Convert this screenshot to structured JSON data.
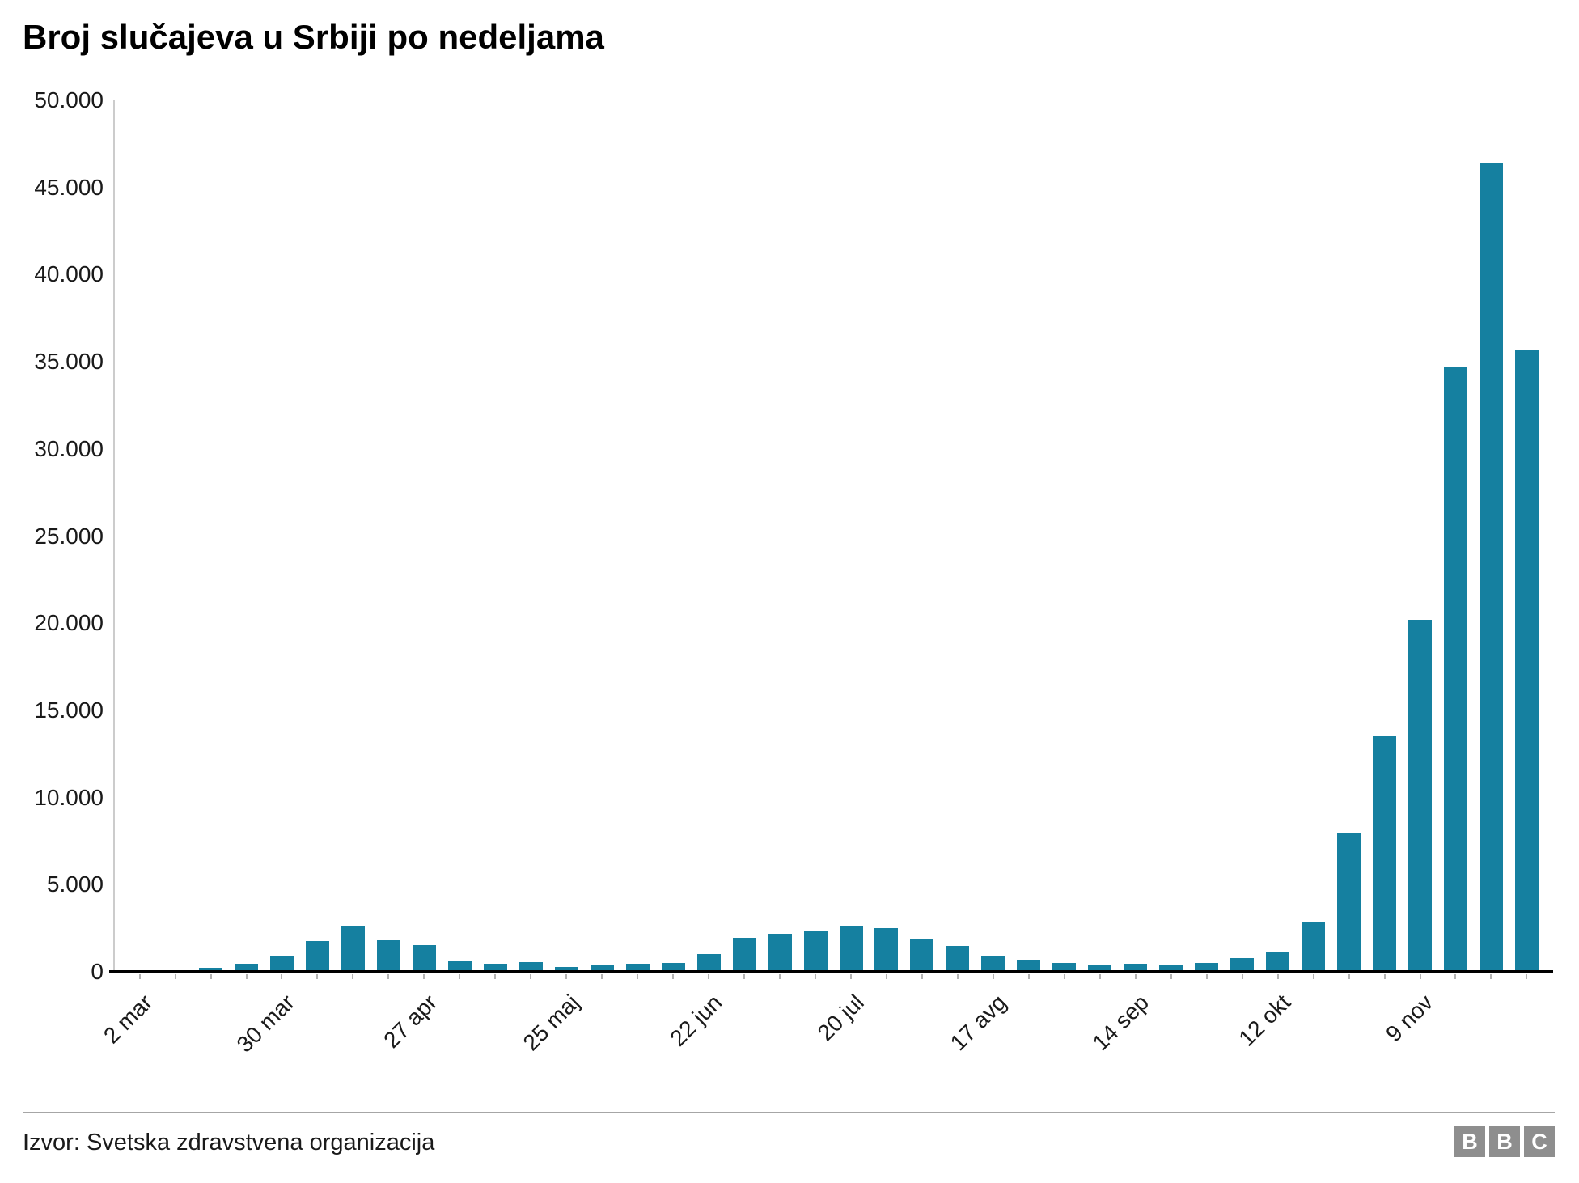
{
  "title": "Broj slučajeva u Srbiji po nedeljama",
  "source": "Izvor: Svetska zdravstvena organizacija",
  "logo": {
    "letters": [
      "B",
      "B",
      "C"
    ]
  },
  "colors": {
    "bar": "#1580A0",
    "y_axis_line": "#cccccc",
    "baseline": "#000000",
    "text": "#1a1a1a",
    "bar_tick": "#b3b3b3",
    "divider": "#a6a6a6",
    "logo_bg": "#8e8e8e",
    "logo_text": "#ffffff"
  },
  "chart_data": {
    "type": "bar",
    "title": "Broj slučajeva u Srbiji po nedeljama",
    "xlabel": "",
    "ylabel": "",
    "ylim": [
      0,
      50000
    ],
    "y_tick_step": 5000,
    "y_tick_format": "dot-thousands",
    "grid": "off",
    "legend": "none",
    "bar_count": 40,
    "values": [
      10,
      50,
      230,
      460,
      930,
      1760,
      2600,
      1800,
      1550,
      600,
      450,
      550,
      300,
      400,
      460,
      520,
      1000,
      1950,
      2200,
      2300,
      2600,
      2500,
      1850,
      1500,
      950,
      650,
      500,
      380,
      480,
      420,
      520,
      780,
      1180,
      2900,
      7950,
      13500,
      20200,
      34700,
      46400,
      35700
    ],
    "x_tick_positions": [
      0,
      4,
      8,
      12,
      16,
      20,
      24,
      28,
      32,
      36
    ],
    "x_tick_labels": [
      "2 mar",
      "30 mar",
      "27 apr",
      "25 maj",
      "22 jun",
      "20 jul",
      "17 avg",
      "14 sep",
      "12 okt",
      "9 nov"
    ]
  }
}
